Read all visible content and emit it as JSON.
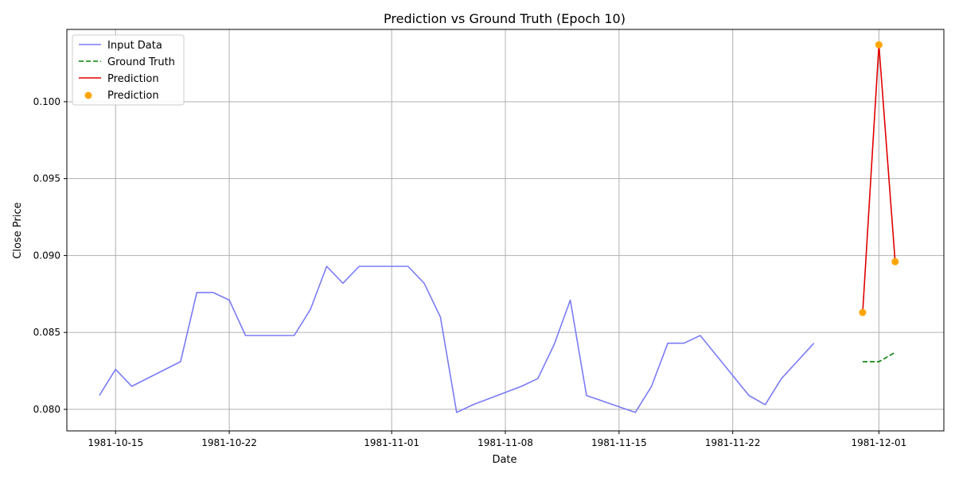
{
  "chart_data": {
    "type": "line",
    "title": "Prediction vs Ground Truth (Epoch 10)",
    "xlabel": "Date",
    "ylabel": "Close Price",
    "grid": true,
    "legend_position": "top-left",
    "xlim": [
      "1981-10-12",
      "1981-12-05"
    ],
    "ylim": [
      0.0786,
      0.1047
    ],
    "x_ticks": [
      "1981-10-15",
      "1981-10-22",
      "1981-11-01",
      "1981-11-08",
      "1981-11-15",
      "1981-11-22",
      "1981-12-01"
    ],
    "y_ticks": [
      0.08,
      0.085,
      0.09,
      0.095,
      0.1
    ],
    "y_tick_labels": [
      "0.080",
      "0.085",
      "0.090",
      "0.095",
      "0.100"
    ],
    "series": [
      {
        "name": "Input Data",
        "kind": "line",
        "color": "#7b7bf7",
        "style": "solid",
        "x": [
          "1981-10-14",
          "1981-10-15",
          "1981-10-16",
          "1981-10-19",
          "1981-10-20",
          "1981-10-21",
          "1981-10-22",
          "1981-10-23",
          "1981-10-26",
          "1981-10-27",
          "1981-10-28",
          "1981-10-29",
          "1981-10-30",
          "1981-11-02",
          "1981-11-03",
          "1981-11-04",
          "1981-11-05",
          "1981-11-06",
          "1981-11-09",
          "1981-11-10",
          "1981-11-11",
          "1981-11-12",
          "1981-11-13",
          "1981-11-16",
          "1981-11-17",
          "1981-11-18",
          "1981-11-19",
          "1981-11-20",
          "1981-11-23",
          "1981-11-24",
          "1981-11-25",
          "1981-11-27"
        ],
        "y": [
          0.0809,
          0.0826,
          0.0815,
          0.0831,
          0.0876,
          0.0876,
          0.0871,
          0.0848,
          0.0848,
          0.0865,
          0.0893,
          0.0882,
          0.0893,
          0.0893,
          0.0882,
          0.086,
          0.0798,
          0.0803,
          0.0815,
          0.082,
          0.0842,
          0.0871,
          0.0809,
          0.0798,
          0.0815,
          0.0843,
          0.0843,
          0.0848,
          0.0809,
          0.0803,
          0.082,
          0.0843
        ]
      },
      {
        "name": "Ground Truth",
        "kind": "line",
        "color": "#008000",
        "style": "dashed",
        "x": [
          "1981-11-30",
          "1981-12-01",
          "1981-12-02"
        ],
        "y": [
          0.0831,
          0.0831,
          0.0837
        ]
      },
      {
        "name": "Prediction",
        "kind": "line",
        "color": "#e00000",
        "style": "solid",
        "x": [
          "1981-11-30",
          "1981-12-01",
          "1981-12-02"
        ],
        "y": [
          0.0863,
          0.1037,
          0.0896
        ]
      },
      {
        "name": "Prediction",
        "kind": "scatter",
        "color": "#ffa500",
        "x": [
          "1981-11-30",
          "1981-12-01",
          "1981-12-02"
        ],
        "y": [
          0.0863,
          0.1037,
          0.0896
        ]
      }
    ]
  }
}
